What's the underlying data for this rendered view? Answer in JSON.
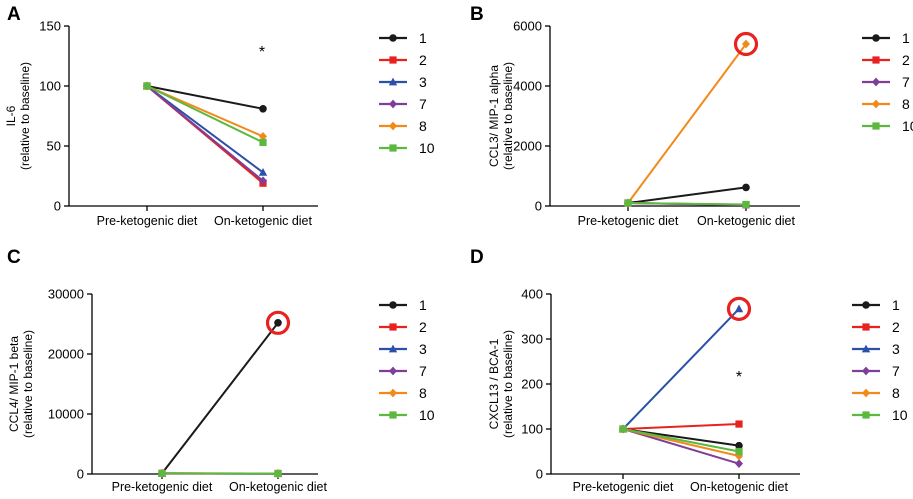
{
  "styles": {
    "series_colors": {
      "1": "#1a1a1a",
      "2": "#e8221f",
      "3": "#2b50a8",
      "7": "#7d3f98",
      "8": "#f28a1a",
      "10": "#5cb83e"
    },
    "highlight_color": "#e8221f"
  },
  "chart_data": [
    {
      "panel": "A",
      "type": "line",
      "ylabel": "IL-6",
      "ylabel_sub": "(relative to baseline)",
      "categories": [
        "Pre-ketogenic diet",
        "On-ketogenic diet"
      ],
      "ylim": [
        0,
        150
      ],
      "yticks": [
        0,
        50,
        100,
        150
      ],
      "significance": "*",
      "series": [
        {
          "name": "1",
          "marker": "circle",
          "values": [
            100,
            81
          ]
        },
        {
          "name": "2",
          "marker": "square",
          "values": [
            100,
            19
          ]
        },
        {
          "name": "3",
          "marker": "triangle",
          "values": [
            100,
            28
          ]
        },
        {
          "name": "7",
          "marker": "diamond",
          "values": [
            100,
            21
          ]
        },
        {
          "name": "8",
          "marker": "diamond",
          "values": [
            100,
            58
          ]
        },
        {
          "name": "10",
          "marker": "square",
          "values": [
            100,
            53
          ]
        }
      ]
    },
    {
      "panel": "B",
      "type": "line",
      "ylabel": "CCL3/ MIP-1 alpha",
      "ylabel_sub": "(relative to baseline)",
      "categories": [
        "Pre-ketogenic diet",
        "On-ketogenic diet"
      ],
      "ylim": [
        0,
        6000
      ],
      "yticks": [
        0,
        2000,
        4000,
        6000
      ],
      "highlight": {
        "series": "8",
        "index": 1
      },
      "series": [
        {
          "name": "1",
          "marker": "circle",
          "values": [
            100,
            620
          ]
        },
        {
          "name": "2",
          "marker": "square",
          "values": [
            100,
            40
          ]
        },
        {
          "name": "7",
          "marker": "diamond",
          "values": [
            100,
            30
          ]
        },
        {
          "name": "8",
          "marker": "diamond",
          "values": [
            100,
            5400
          ]
        },
        {
          "name": "10",
          "marker": "square",
          "values": [
            100,
            50
          ]
        }
      ]
    },
    {
      "panel": "C",
      "type": "line",
      "ylabel": "CCL4/ MIP-1 beta",
      "ylabel_sub": "(relative to baseline)",
      "categories": [
        "Pre-ketogenic diet",
        "On-ketogenic diet"
      ],
      "ylim": [
        0,
        30000
      ],
      "yticks": [
        0,
        10000,
        20000,
        30000
      ],
      "highlight": {
        "series": "1",
        "index": 1
      },
      "series": [
        {
          "name": "1",
          "marker": "circle",
          "values": [
            100,
            25200
          ]
        },
        {
          "name": "2",
          "marker": "square",
          "values": [
            100,
            90
          ]
        },
        {
          "name": "3",
          "marker": "triangle",
          "values": [
            100,
            60
          ]
        },
        {
          "name": "7",
          "marker": "diamond",
          "values": [
            100,
            50
          ]
        },
        {
          "name": "8",
          "marker": "diamond",
          "values": [
            100,
            70
          ]
        },
        {
          "name": "10",
          "marker": "square",
          "values": [
            100,
            80
          ]
        }
      ]
    },
    {
      "panel": "D",
      "type": "line",
      "ylabel": "CXCL13 / BCA-1",
      "ylabel_sub": "(relative to baseline)",
      "categories": [
        "Pre-ketogenic diet",
        "On-ketogenic diet"
      ],
      "ylim": [
        0,
        400
      ],
      "yticks": [
        0,
        100,
        200,
        300,
        400
      ],
      "significance": "*",
      "highlight": {
        "series": "3",
        "index": 1
      },
      "series": [
        {
          "name": "1",
          "marker": "circle",
          "values": [
            100,
            63
          ]
        },
        {
          "name": "2",
          "marker": "square",
          "values": [
            100,
            111
          ]
        },
        {
          "name": "3",
          "marker": "triangle",
          "values": [
            100,
            367
          ]
        },
        {
          "name": "7",
          "marker": "diamond",
          "values": [
            100,
            23
          ]
        },
        {
          "name": "8",
          "marker": "diamond",
          "values": [
            100,
            40
          ]
        },
        {
          "name": "10",
          "marker": "square",
          "values": [
            100,
            50
          ]
        }
      ]
    }
  ]
}
